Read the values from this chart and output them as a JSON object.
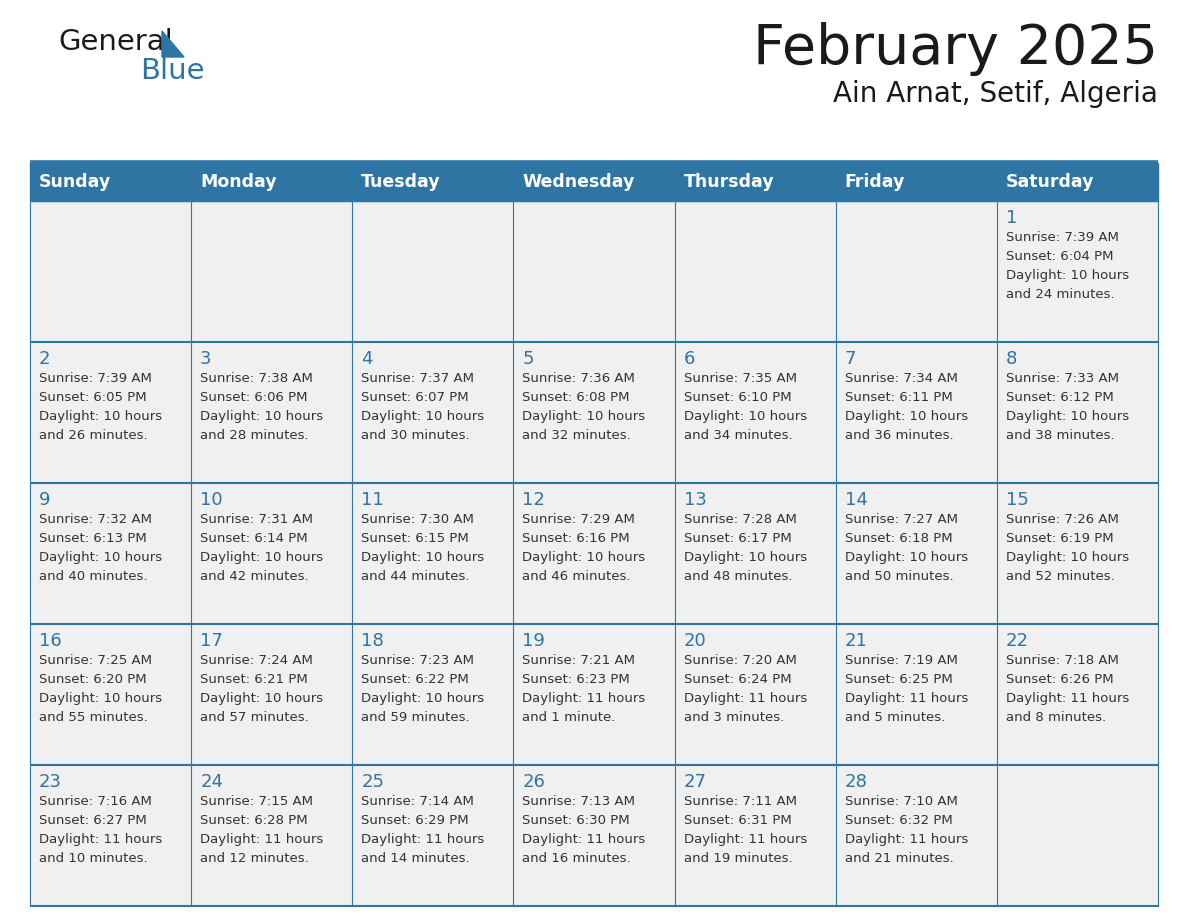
{
  "title": "February 2025",
  "subtitle": "Ain Arnat, Setif, Algeria",
  "header_bg_color": "#2E75A3",
  "header_text_color": "#FFFFFF",
  "cell_bg_color": "#F0F0F0",
  "day_headers": [
    "Sunday",
    "Monday",
    "Tuesday",
    "Wednesday",
    "Thursday",
    "Friday",
    "Saturday"
  ],
  "title_color": "#1a1a1a",
  "subtitle_color": "#1a1a1a",
  "line_color": "#2E75A3",
  "day_number_color": "#2E75A3",
  "cell_text_color": "#333333",
  "calendar_data": [
    [
      null,
      null,
      null,
      null,
      null,
      null,
      {
        "day": 1,
        "sunrise": "7:39 AM",
        "sunset": "6:04 PM",
        "daylight": "10 hours and 24 minutes."
      }
    ],
    [
      {
        "day": 2,
        "sunrise": "7:39 AM",
        "sunset": "6:05 PM",
        "daylight": "10 hours and 26 minutes."
      },
      {
        "day": 3,
        "sunrise": "7:38 AM",
        "sunset": "6:06 PM",
        "daylight": "10 hours and 28 minutes."
      },
      {
        "day": 4,
        "sunrise": "7:37 AM",
        "sunset": "6:07 PM",
        "daylight": "10 hours and 30 minutes."
      },
      {
        "day": 5,
        "sunrise": "7:36 AM",
        "sunset": "6:08 PM",
        "daylight": "10 hours and 32 minutes."
      },
      {
        "day": 6,
        "sunrise": "7:35 AM",
        "sunset": "6:10 PM",
        "daylight": "10 hours and 34 minutes."
      },
      {
        "day": 7,
        "sunrise": "7:34 AM",
        "sunset": "6:11 PM",
        "daylight": "10 hours and 36 minutes."
      },
      {
        "day": 8,
        "sunrise": "7:33 AM",
        "sunset": "6:12 PM",
        "daylight": "10 hours and 38 minutes."
      }
    ],
    [
      {
        "day": 9,
        "sunrise": "7:32 AM",
        "sunset": "6:13 PM",
        "daylight": "10 hours and 40 minutes."
      },
      {
        "day": 10,
        "sunrise": "7:31 AM",
        "sunset": "6:14 PM",
        "daylight": "10 hours and 42 minutes."
      },
      {
        "day": 11,
        "sunrise": "7:30 AM",
        "sunset": "6:15 PM",
        "daylight": "10 hours and 44 minutes."
      },
      {
        "day": 12,
        "sunrise": "7:29 AM",
        "sunset": "6:16 PM",
        "daylight": "10 hours and 46 minutes."
      },
      {
        "day": 13,
        "sunrise": "7:28 AM",
        "sunset": "6:17 PM",
        "daylight": "10 hours and 48 minutes."
      },
      {
        "day": 14,
        "sunrise": "7:27 AM",
        "sunset": "6:18 PM",
        "daylight": "10 hours and 50 minutes."
      },
      {
        "day": 15,
        "sunrise": "7:26 AM",
        "sunset": "6:19 PM",
        "daylight": "10 hours and 52 minutes."
      }
    ],
    [
      {
        "day": 16,
        "sunrise": "7:25 AM",
        "sunset": "6:20 PM",
        "daylight": "10 hours and 55 minutes."
      },
      {
        "day": 17,
        "sunrise": "7:24 AM",
        "sunset": "6:21 PM",
        "daylight": "10 hours and 57 minutes."
      },
      {
        "day": 18,
        "sunrise": "7:23 AM",
        "sunset": "6:22 PM",
        "daylight": "10 hours and 59 minutes."
      },
      {
        "day": 19,
        "sunrise": "7:21 AM",
        "sunset": "6:23 PM",
        "daylight": "11 hours and 1 minute."
      },
      {
        "day": 20,
        "sunrise": "7:20 AM",
        "sunset": "6:24 PM",
        "daylight": "11 hours and 3 minutes."
      },
      {
        "day": 21,
        "sunrise": "7:19 AM",
        "sunset": "6:25 PM",
        "daylight": "11 hours and 5 minutes."
      },
      {
        "day": 22,
        "sunrise": "7:18 AM",
        "sunset": "6:26 PM",
        "daylight": "11 hours and 8 minutes."
      }
    ],
    [
      {
        "day": 23,
        "sunrise": "7:16 AM",
        "sunset": "6:27 PM",
        "daylight": "11 hours and 10 minutes."
      },
      {
        "day": 24,
        "sunrise": "7:15 AM",
        "sunset": "6:28 PM",
        "daylight": "11 hours and 12 minutes."
      },
      {
        "day": 25,
        "sunrise": "7:14 AM",
        "sunset": "6:29 PM",
        "daylight": "11 hours and 14 minutes."
      },
      {
        "day": 26,
        "sunrise": "7:13 AM",
        "sunset": "6:30 PM",
        "daylight": "11 hours and 16 minutes."
      },
      {
        "day": 27,
        "sunrise": "7:11 AM",
        "sunset": "6:31 PM",
        "daylight": "11 hours and 19 minutes."
      },
      {
        "day": 28,
        "sunrise": "7:10 AM",
        "sunset": "6:32 PM",
        "daylight": "11 hours and 21 minutes."
      },
      null
    ]
  ]
}
